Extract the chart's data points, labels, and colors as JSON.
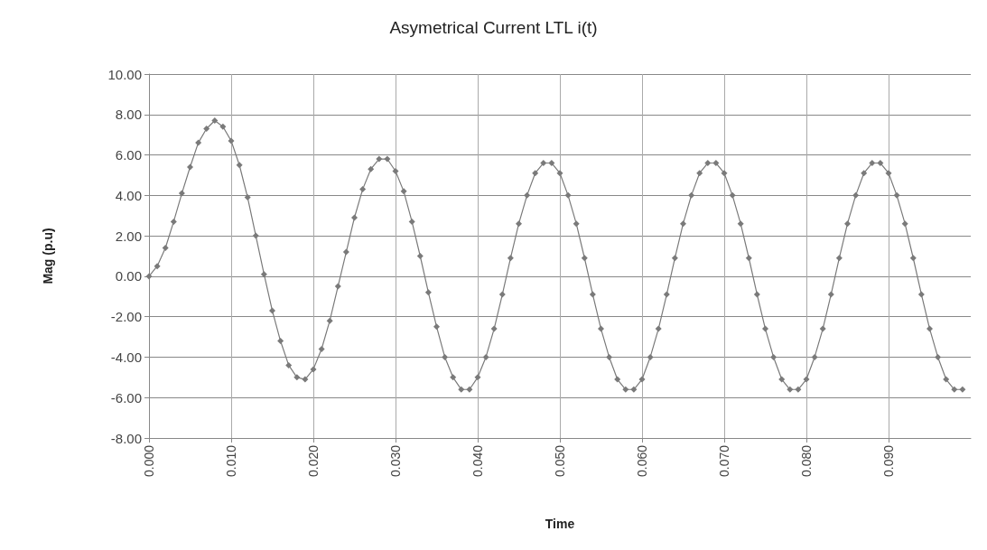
{
  "chart_data": {
    "type": "line",
    "title": "Asymetrical Current LTL i(t)",
    "xlabel": "Time",
    "ylabel": "Mag (p.u)",
    "x": [
      0,
      0.001,
      0.002,
      0.003,
      0.004,
      0.005,
      0.006,
      0.007,
      0.008,
      0.009,
      0.01,
      0.011,
      0.012,
      0.013,
      0.014,
      0.015,
      0.016,
      0.017,
      0.018,
      0.019,
      0.02,
      0.021,
      0.022,
      0.023,
      0.024,
      0.025,
      0.026,
      0.027,
      0.028,
      0.029,
      0.03,
      0.031,
      0.032,
      0.033,
      0.034,
      0.035,
      0.036,
      0.037,
      0.038,
      0.039,
      0.04,
      0.041,
      0.042,
      0.043,
      0.044,
      0.045,
      0.046,
      0.047,
      0.048,
      0.049,
      0.05,
      0.051,
      0.052,
      0.053,
      0.054,
      0.055,
      0.056,
      0.057,
      0.058,
      0.059,
      0.06,
      0.061,
      0.062,
      0.063,
      0.064,
      0.065,
      0.066,
      0.067,
      0.068,
      0.069,
      0.07,
      0.071,
      0.072,
      0.073,
      0.074,
      0.075,
      0.076,
      0.077,
      0.078,
      0.079,
      0.08,
      0.081,
      0.082,
      0.083,
      0.084,
      0.085,
      0.086,
      0.087,
      0.088,
      0.089,
      0.09,
      0.091,
      0.092,
      0.093,
      0.094,
      0.095,
      0.096,
      0.097,
      0.098,
      0.099
    ],
    "series": [
      {
        "color": "#7a7a7a",
        "values": [
          0.0,
          0.5,
          1.4,
          2.7,
          4.1,
          5.4,
          6.6,
          7.3,
          7.7,
          7.4,
          6.7,
          5.5,
          3.9,
          2.0,
          0.1,
          -1.7,
          -3.2,
          -4.4,
          -5.0,
          -5.1,
          -4.6,
          -3.6,
          -2.2,
          -0.5,
          1.2,
          2.9,
          4.3,
          5.3,
          5.8,
          5.8,
          5.2,
          4.2,
          2.7,
          1.0,
          -0.8,
          -2.5,
          -4.0,
          -5.0,
          -5.6,
          -5.6,
          -5.0,
          -4.0,
          -2.6,
          -0.9,
          0.9,
          2.6,
          4.0,
          5.1,
          5.6,
          5.6,
          5.1,
          4.0,
          2.6,
          0.9,
          -0.9,
          -2.6,
          -4.0,
          -5.1,
          -5.6,
          -5.6,
          -5.1,
          -4.0,
          -2.6,
          -0.9,
          0.9,
          2.6,
          4.0,
          5.1,
          5.6,
          5.6,
          5.1,
          4.0,
          2.6,
          0.9,
          -0.9,
          -2.6,
          -4.0,
          -5.1,
          -5.6,
          -5.6,
          -5.1,
          -4.0,
          -2.6,
          -0.9,
          0.9,
          2.6,
          4.0,
          5.1,
          5.6,
          5.6,
          5.1,
          4.0,
          2.6,
          0.9,
          -0.9,
          -2.6,
          -4.0,
          -5.1,
          -5.6,
          -5.6
        ]
      }
    ],
    "xlim": [
      0,
      0.1
    ],
    "xticks": [
      {
        "value": 0,
        "label": "0.000"
      },
      {
        "value": 0.01,
        "label": "0.010"
      },
      {
        "value": 0.02,
        "label": "0.020"
      },
      {
        "value": 0.03,
        "label": "0.030"
      },
      {
        "value": 0.04,
        "label": "0.040"
      },
      {
        "value": 0.05,
        "label": "0.050"
      },
      {
        "value": 0.06,
        "label": "0.060"
      },
      {
        "value": 0.07,
        "label": "0.070"
      },
      {
        "value": 0.08,
        "label": "0.080"
      },
      {
        "value": 0.09,
        "label": "0.090"
      }
    ],
    "ylim": [
      -8,
      10
    ],
    "yticks": [
      {
        "value": -8,
        "label": "-8.00"
      },
      {
        "value": -6,
        "label": "-6.00"
      },
      {
        "value": -4,
        "label": "-4.00"
      },
      {
        "value": -2,
        "label": "-2.00"
      },
      {
        "value": 0,
        "label": "0.00"
      },
      {
        "value": 2,
        "label": "2.00"
      },
      {
        "value": 4,
        "label": "4.00"
      },
      {
        "value": 6,
        "label": "6.00"
      },
      {
        "value": 8,
        "label": "8.00"
      },
      {
        "value": 10,
        "label": "10.00"
      }
    ],
    "grid": true,
    "marker": "diamond",
    "line_style": "solid"
  }
}
